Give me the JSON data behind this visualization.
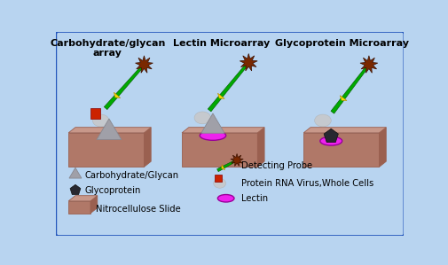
{
  "bg_color": "#b8d4f0",
  "border_color": "#2255bb",
  "title1": "Carbohydrate/glycan\narray",
  "title2": "Lectin Microarray",
  "title3": "Glycoprotein Microarray",
  "legend_carbohydrate": "Carbohydrate/Glycan",
  "legend_glycoprotein": "Glycoprotein",
  "legend_slide": "Nitrocellulose Slide",
  "legend_probe": "Detecting Probe",
  "legend_protein": "Protein RNA Virus,Whole Cells",
  "legend_lectin": "Lectin",
  "slide_top_color": "#c8988a",
  "slide_front_color": "#b07868",
  "slide_side_color": "#9a6050",
  "glycan_tri_color": "#a0a0a8",
  "glycan_tri_edge": "#888890",
  "glycoprotein_color": "#282830",
  "lectin_color": "#ee22ee",
  "lectin_edge": "#990099",
  "probe_green": "#00aa00",
  "probe_yellow": "#ffdd00",
  "probe_brown": "#7a2800",
  "red_shape_color": "#cc2200",
  "red_shape_edge": "#880000",
  "gray_blob_color": "#c8c8c8",
  "title_fontsize": 8.0,
  "legend_fontsize": 7.2
}
